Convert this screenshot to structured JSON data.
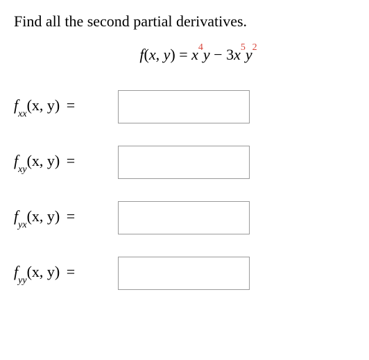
{
  "prompt": "Find all the second partial derivatives.",
  "equation": {
    "prefix": "f",
    "args_open": "(",
    "var1": "x",
    "comma": ", ",
    "var2": "y",
    "args_close": ")",
    "eq": " = ",
    "t1_var": "x",
    "t1_exp": "4",
    "t1_var2": "y",
    "minus": " − ",
    "t2_coef": "3",
    "t2_var": "x",
    "t2_exp": "5",
    "t2_var2": "y",
    "t2_exp2": "2",
    "exp_colors": {
      "t1_exp": "#d9453a",
      "t2_exp": "#d9453a",
      "t2_exp2": "#d9453a"
    }
  },
  "rows": {
    "r1": {
      "f": "f",
      "sub": "xx",
      "args": "(x, y) ",
      "eq": "=",
      "value": ""
    },
    "r2": {
      "f": "f",
      "sub": "xy",
      "args": "(x, y) ",
      "eq": "=",
      "value": ""
    },
    "r3": {
      "f": "f",
      "sub": "yx",
      "args": "(x, y) ",
      "eq": "=",
      "value": ""
    },
    "r4": {
      "f": "f",
      "sub": "yy",
      "args": "(x, y) ",
      "eq": "=",
      "value": ""
    }
  },
  "styling": {
    "background": "#ffffff",
    "text_color": "#000000",
    "accent_color": "#d9453a",
    "input_border": "#9a9a9a",
    "input_width": 190,
    "input_height": 48,
    "font_size_prompt": 22,
    "font_size_label": 22,
    "font_family": "Georgia, Times New Roman, serif"
  }
}
